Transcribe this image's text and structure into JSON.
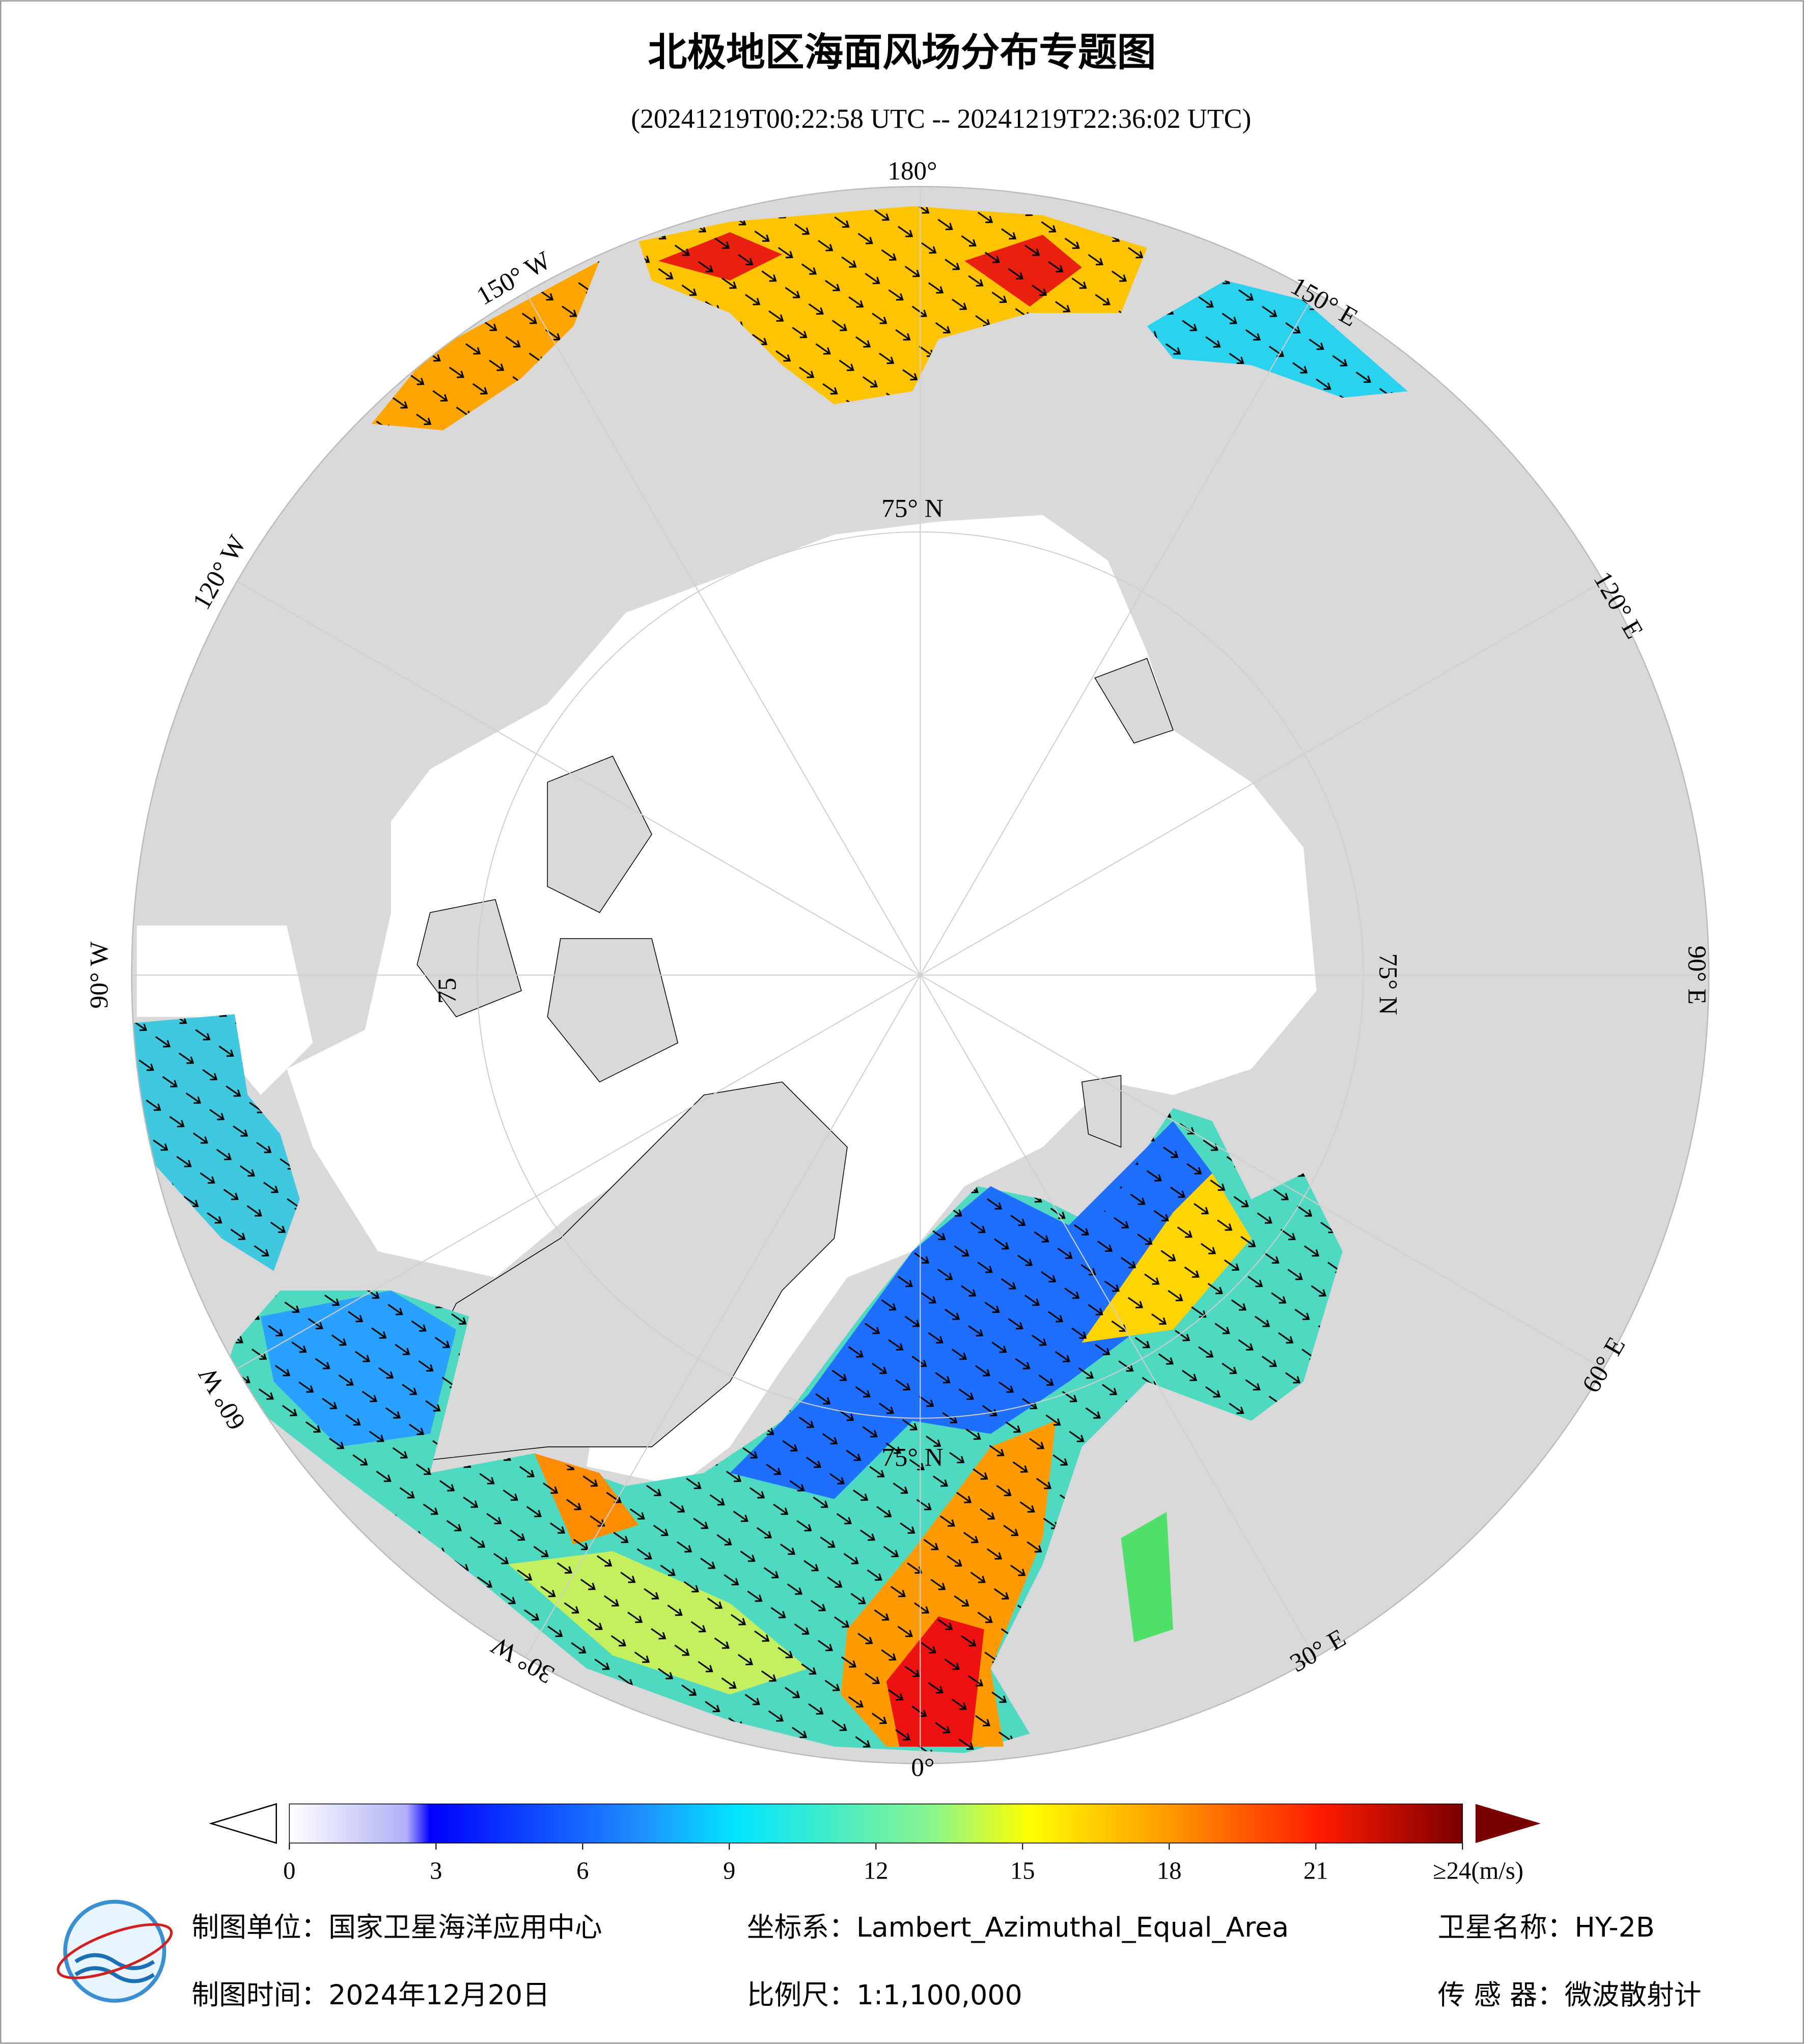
{
  "header": {
    "title": "北极地区海面风场分布专题图",
    "subtitle": "(20241219T00:22:58 UTC -- 20241219T22:36:02 UTC)"
  },
  "map": {
    "longitude_labels": [
      "180°",
      "150° W",
      "120° W",
      "90° W",
      "60° W",
      "30° W",
      "0°",
      "30° E",
      "60° E",
      "90° E",
      "120° E",
      "150° E"
    ],
    "latitude_labels": [
      "75° N",
      "75° N",
      "75° N",
      "75"
    ]
  },
  "colorbar": {
    "range": [
      0,
      24
    ],
    "ticks": [
      0,
      3,
      6,
      9,
      12,
      15,
      18,
      21,
      {
        "value": 24,
        "label": "≥24(m/s)"
      }
    ]
  },
  "footer": {
    "unit": "制图单位：国家卫星海洋应用中心",
    "coordinate_system": "坐标系：Lambert_Azimuthal_Equal_Area",
    "satellite": "卫星名称：HY-2B",
    "date": "制图时间：2024年12月20日",
    "scale": "比例尺：1:1,100,000",
    "sensor": "传 感 器：微波散射计"
  }
}
